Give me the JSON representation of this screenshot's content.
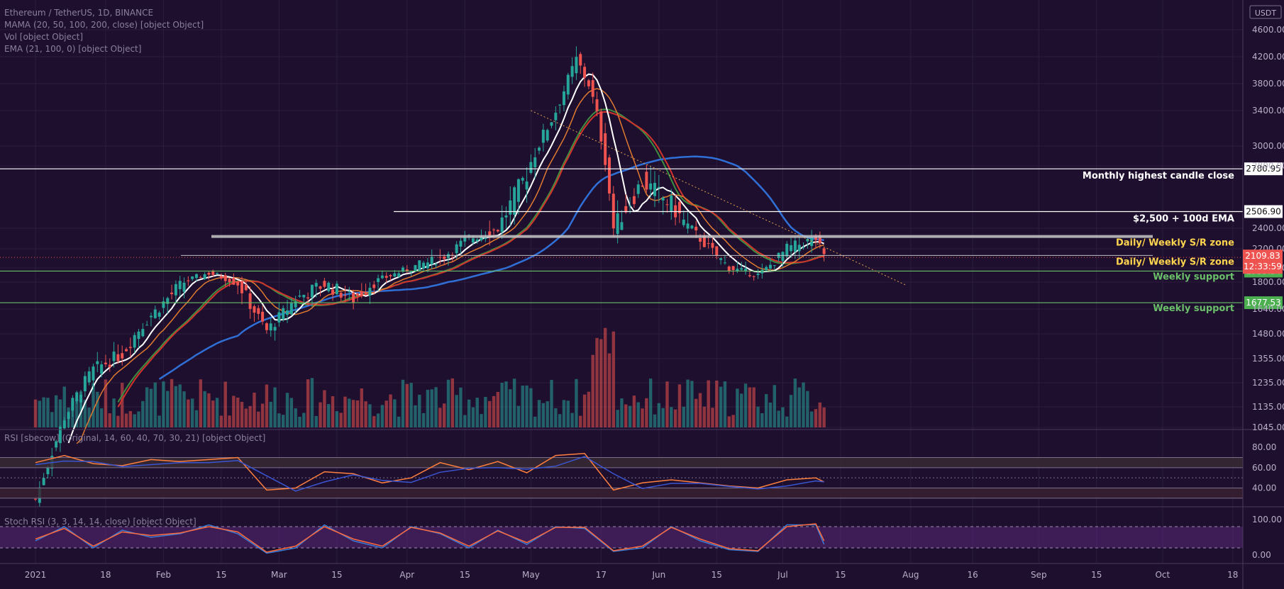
{
  "header": {
    "symbol_line": "Ethereum / TetherUS, 1D, BINANCE",
    "mama_line": "MAMA (20, 50, 100, 200, close) [object Object]",
    "vol_line": "Vol [object Object]",
    "ema_line": "EMA (21, 100, 0) [object Object]",
    "currency": "USDT",
    "price_label": "2109.83",
    "countdown": "12:33:59"
  },
  "colors": {
    "background": "#1e0f2e",
    "up": "#26a69a",
    "down": "#ef5350",
    "ema_white": "#ffffff",
    "ma_orange": "#e07a30",
    "ma_red": "#d0342c",
    "ma_blue": "#2f6fd6",
    "ma_green": "#3e8e41",
    "rsi_line": "#ff7f3f",
    "rsi_ma": "#3a55d0",
    "stoch_k": "#3a7bd5",
    "stoch_d": "#ff6a3d",
    "label_yellow": "#ffd54f",
    "label_green": "#6abf69"
  },
  "rsi_header": "RSI [sbecow] (Original, 14, 60, 40, 70, 30, 21) [object Object]",
  "stoch_header": "Stoch RSI (3, 3, 14, 14, close) [object Object]",
  "chart_data": [
    {
      "type": "candlestick",
      "title": "Ethereum / TetherUS, 1D, BINANCE",
      "price_axis_labels": [
        "4600.00",
        "4200.00",
        "3800.00",
        "3400.00",
        "3000.00",
        "2800.00",
        "2400.00",
        "2200.00",
        "2000.00",
        "1800.00",
        "1640.00",
        "1480.00",
        "1355.00",
        "1235.00",
        "1135.00",
        "1045.00"
      ],
      "price_axis_values": [
        4600,
        4200,
        3800,
        3400,
        3000,
        2800,
        2400,
        2200,
        2000,
        1800,
        1640,
        1480,
        1355,
        1235,
        1135,
        1045
      ],
      "x_tick_labels": [
        "2021",
        "18",
        "Feb",
        "15",
        "Mar",
        "15",
        "Apr",
        "15",
        "May",
        "17",
        "Jun",
        "15",
        "Jul",
        "15",
        "Aug",
        "16",
        "Sep",
        "15",
        "Oct",
        "18"
      ],
      "x_tick_days": [
        0,
        17,
        31,
        45,
        59,
        73,
        90,
        104,
        120,
        137,
        151,
        165,
        181,
        195,
        212,
        227,
        243,
        257,
        273,
        290
      ],
      "horizontal_levels": [
        {
          "price": 2780.95,
          "label": "Monthly highest candle close",
          "tag": "2780.95",
          "color": "#ffffff"
        },
        {
          "price": 2506.9,
          "label": "$2,500 + 100d EMA",
          "tag": "2506.90",
          "color": "#ffffff"
        },
        {
          "price": 2320,
          "label": "Daily/ Weekly S/R zone",
          "tag": "",
          "color": "#c8c8c8"
        },
        {
          "price": 2130,
          "label": "Daily/ Weekly S/R zone",
          "tag": "",
          "color": "#c8c8c8"
        },
        {
          "price": 1955.54,
          "label": "Weekly support",
          "tag": "1955.54",
          "color": "#6abf69"
        },
        {
          "price": 1677.53,
          "label": "Weekly support",
          "tag": "1677.53",
          "color": "#6abf69"
        }
      ],
      "current_price": 2109.83,
      "close_series_days": [
        0,
        7,
        14,
        21,
        28,
        35,
        42,
        49,
        56,
        63,
        70,
        77,
        84,
        91,
        98,
        105,
        112,
        119,
        126,
        131,
        134,
        140,
        147,
        154,
        161,
        168,
        175,
        182,
        189,
        191
      ],
      "close_series": [
        730,
        1090,
        1300,
        1380,
        1600,
        1780,
        1930,
        1800,
        1500,
        1700,
        1790,
        1700,
        1850,
        2000,
        2100,
        2300,
        2400,
        2750,
        3400,
        4150,
        3800,
        2400,
        2700,
        2550,
        2300,
        2000,
        1900,
        2200,
        2300,
        2110
      ]
    },
    {
      "type": "line",
      "title": "RSI",
      "y_axis_labels": [
        "80.00",
        "60.00",
        "40.00"
      ],
      "y_axis_values": [
        80,
        60,
        40
      ],
      "levels": [
        70,
        60,
        50,
        40,
        30
      ],
      "x_days": [
        0,
        7,
        14,
        21,
        28,
        35,
        42,
        49,
        56,
        63,
        70,
        77,
        84,
        91,
        98,
        105,
        112,
        119,
        126,
        133,
        140,
        147,
        154,
        161,
        168,
        175,
        182,
        189,
        191
      ],
      "values": [
        65,
        72,
        64,
        62,
        68,
        66,
        68,
        70,
        38,
        40,
        56,
        54,
        45,
        50,
        65,
        58,
        66,
        55,
        72,
        74,
        38,
        45,
        48,
        45,
        42,
        40,
        48,
        50,
        46
      ]
    },
    {
      "type": "line",
      "title": "Stoch RSI",
      "y_axis_labels": [
        "100.00",
        "0.00"
      ],
      "y_axis_values": [
        100,
        0
      ],
      "levels": [
        80,
        20
      ],
      "x_days": [
        0,
        7,
        14,
        21,
        28,
        35,
        42,
        49,
        56,
        63,
        70,
        77,
        84,
        91,
        98,
        105,
        112,
        119,
        126,
        133,
        140,
        147,
        154,
        161,
        168,
        175,
        182,
        189,
        191
      ],
      "k_values": [
        40,
        80,
        20,
        70,
        50,
        60,
        85,
        60,
        5,
        20,
        85,
        40,
        20,
        80,
        60,
        20,
        70,
        30,
        80,
        75,
        10,
        20,
        80,
        40,
        15,
        10,
        85,
        85,
        30
      ],
      "d_values": [
        45,
        75,
        25,
        65,
        55,
        62,
        80,
        65,
        8,
        25,
        80,
        45,
        25,
        78,
        62,
        25,
        68,
        35,
        78,
        78,
        12,
        25,
        78,
        45,
        18,
        12,
        80,
        88,
        40
      ]
    }
  ]
}
